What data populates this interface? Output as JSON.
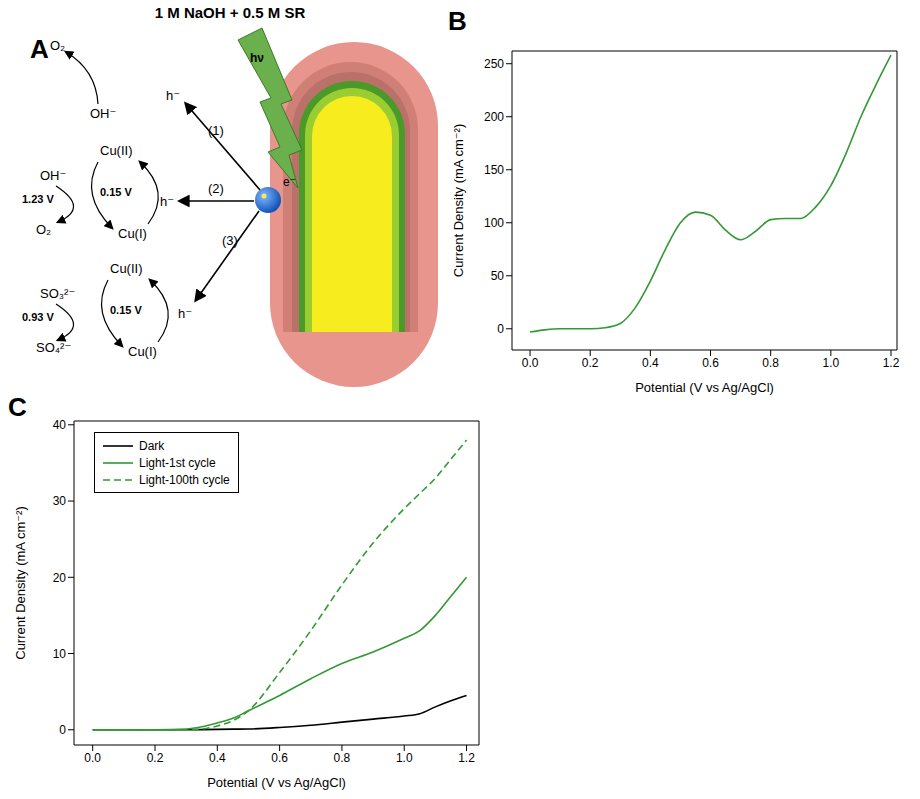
{
  "diagram": {
    "panel": "A",
    "title": "1 M NaOH + 0.5 M SR",
    "light": "hν",
    "electron": "e⁻",
    "pathways": [
      {
        "label": "(1)",
        "hole": "h⁻",
        "reactant": "OH⁻",
        "product": "O₂"
      },
      {
        "label": "(2)",
        "hole": "h⁻",
        "oxidized": "Cu(II)",
        "reduced": "Cu(I)",
        "mediator_potential": "0.15 V",
        "reactant": "OH⁻",
        "product": "O₂",
        "potential": "1.23 V"
      },
      {
        "label": "(3)",
        "hole": "h⁻",
        "oxidized": "Cu(II)",
        "reduced": "Cu(I)",
        "mediator_potential": "0.15 V",
        "reactant": "SO₃²⁻",
        "product": "SO₄²⁻",
        "potential": "0.93 V"
      }
    ]
  },
  "panel_labels": [
    "B",
    "C"
  ],
  "chart_data": [
    {
      "type": "line",
      "x_label": "Potential (V vs Ag/AgCl)",
      "y_label": "Current Density (mA cm⁻²)",
      "x": [
        0,
        0.05,
        0.1,
        0.2,
        0.25,
        0.3,
        0.35,
        0.4,
        0.45,
        0.5,
        0.55,
        0.6,
        0.65,
        0.7,
        0.75,
        0.8,
        0.85,
        0.9,
        0.95,
        1.0,
        1.05,
        1.1,
        1.15,
        1.2
      ],
      "values": [
        -3,
        -1,
        0,
        0,
        1,
        5,
        20,
        45,
        75,
        100,
        110,
        107,
        93,
        84,
        92,
        103,
        104,
        104,
        115,
        135,
        165,
        200,
        230,
        258
      ],
      "color": "#339933",
      "xlim": [
        -0.06,
        1.22
      ],
      "xticks": [
        {
          "value": 0,
          "label": "0.0"
        },
        0.2,
        0.4,
        0.6,
        0.8,
        {
          "value": 1,
          "label": "1.0"
        },
        1.2
      ],
      "ylim": [
        -20,
        262
      ],
      "yticks": [
        0,
        50,
        100,
        150,
        200,
        250
      ],
      "grid": false
    },
    {
      "type": "line",
      "x_label": "Potential (V vs Ag/AgCl)",
      "y_label": "Current Density (mA cm⁻²)",
      "x": [
        0,
        0.1,
        0.2,
        0.3,
        0.35,
        0.4,
        0.45,
        0.5,
        0.6,
        0.7,
        0.8,
        0.9,
        1.0,
        1.05,
        1.1,
        1.15,
        1.2
      ],
      "series": [
        {
          "name": "Dark",
          "color": "#000000",
          "line_style": "solid",
          "values": [
            0,
            0,
            0,
            0,
            0.02,
            0.05,
            0.08,
            0.1,
            0.3,
            0.6,
            1.0,
            1.4,
            1.8,
            2.1,
            3.0,
            3.8,
            4.5
          ]
        },
        {
          "name": "Light-1st cycle",
          "color": "#339933",
          "line_style": "solid",
          "values": [
            0,
            0,
            0,
            0.1,
            0.4,
            0.9,
            1.5,
            2.5,
            4.5,
            6.7,
            8.7,
            10.2,
            12.0,
            13.0,
            15.0,
            17.5,
            20.0
          ]
        },
        {
          "name": "Light-100th cycle",
          "color": "#339933",
          "line_style": "dashed",
          "values": [
            0,
            0,
            0,
            0,
            0.1,
            0.5,
            1.2,
            2.5,
            7.5,
            13.0,
            19.0,
            24.5,
            29.0,
            31.0,
            33.0,
            35.5,
            38.0
          ]
        }
      ],
      "xlim": [
        -0.06,
        1.24
      ],
      "xticks": [
        {
          "value": 0,
          "label": "0.0"
        },
        0.2,
        0.4,
        0.6,
        0.8,
        {
          "value": 1,
          "label": "1.0"
        },
        1.2
      ],
      "ylim": [
        -2,
        40.5
      ],
      "yticks": [
        0,
        10,
        20,
        30,
        40
      ],
      "grid": false,
      "legend": "top-left"
    }
  ]
}
